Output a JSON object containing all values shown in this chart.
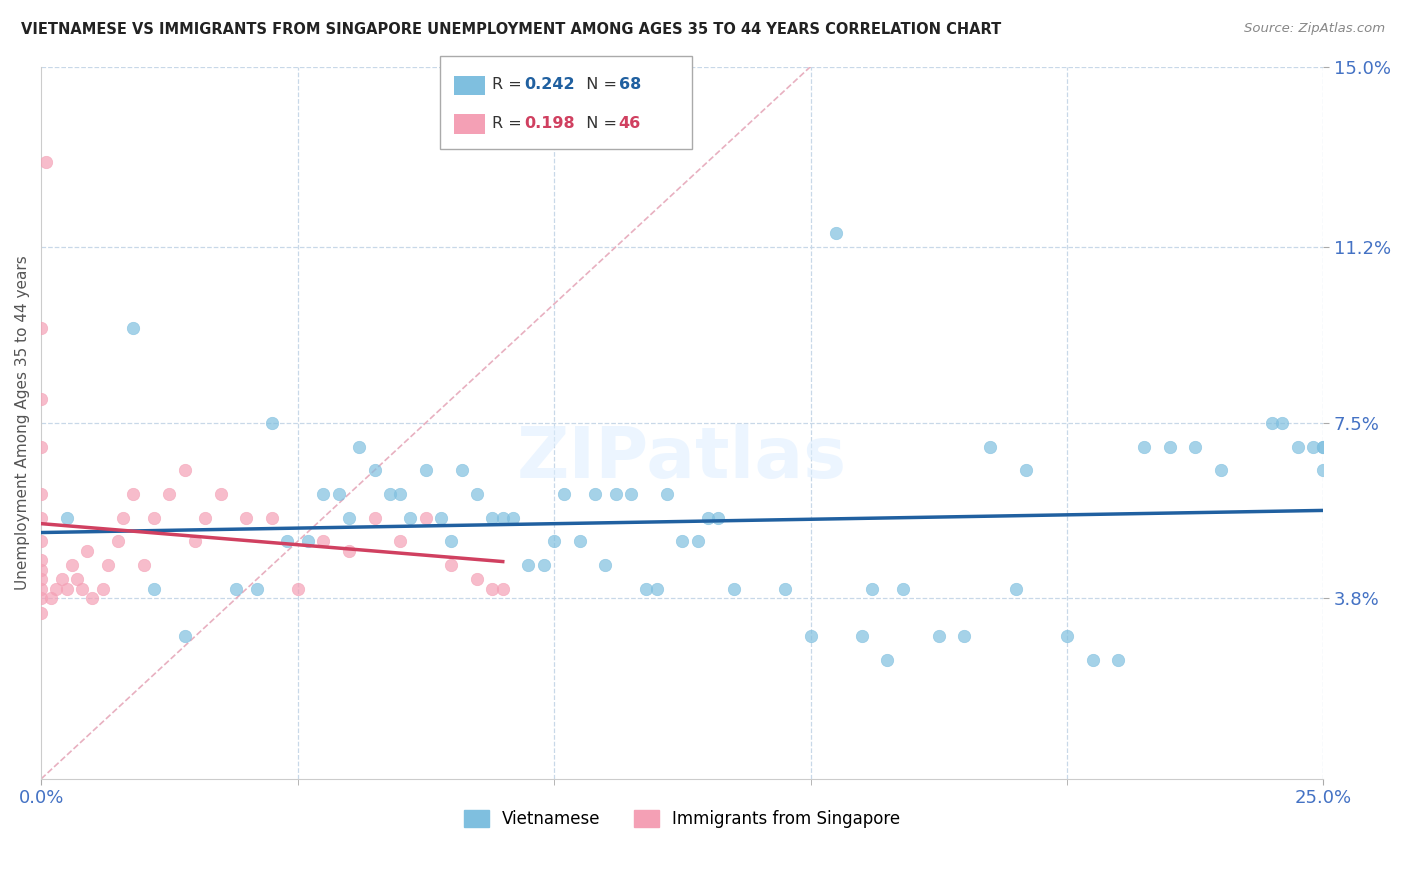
{
  "title": "VIETNAMESE VS IMMIGRANTS FROM SINGAPORE UNEMPLOYMENT AMONG AGES 35 TO 44 YEARS CORRELATION CHART",
  "source": "Source: ZipAtlas.com",
  "ylabel": "Unemployment Among Ages 35 to 44 years",
  "xlim": [
    0.0,
    0.25
  ],
  "ylim": [
    0.0,
    0.15
  ],
  "ytick_labels": [
    "3.8%",
    "7.5%",
    "11.2%",
    "15.0%"
  ],
  "ytick_vals": [
    0.038,
    0.075,
    0.112,
    0.15
  ],
  "blue_color": "#7fbfdf",
  "pink_color": "#f4a0b5",
  "blue_line_color": "#2060a0",
  "pink_line_color": "#d04060",
  "diag_line_color": "#e8b0c0",
  "legend_R1": "0.242",
  "legend_N1": "68",
  "legend_R2": "0.198",
  "legend_N2": "46",
  "watermark": "ZIPatlas",
  "blue_scatter_x": [
    0.005,
    0.018,
    0.022,
    0.028,
    0.038,
    0.042,
    0.045,
    0.048,
    0.052,
    0.055,
    0.058,
    0.06,
    0.062,
    0.065,
    0.068,
    0.07,
    0.072,
    0.075,
    0.078,
    0.08,
    0.082,
    0.085,
    0.088,
    0.09,
    0.092,
    0.095,
    0.098,
    0.1,
    0.102,
    0.105,
    0.108,
    0.11,
    0.112,
    0.115,
    0.118,
    0.12,
    0.122,
    0.125,
    0.128,
    0.13,
    0.132,
    0.135,
    0.145,
    0.15,
    0.16,
    0.165,
    0.175,
    0.18,
    0.19,
    0.2,
    0.205,
    0.21,
    0.155,
    0.162,
    0.168,
    0.185,
    0.192,
    0.215,
    0.22,
    0.225,
    0.23,
    0.24,
    0.242,
    0.245,
    0.248,
    0.25,
    0.25,
    0.25
  ],
  "blue_scatter_y": [
    0.055,
    0.095,
    0.04,
    0.03,
    0.04,
    0.04,
    0.075,
    0.05,
    0.05,
    0.06,
    0.06,
    0.055,
    0.07,
    0.065,
    0.06,
    0.06,
    0.055,
    0.065,
    0.055,
    0.05,
    0.065,
    0.06,
    0.055,
    0.055,
    0.055,
    0.045,
    0.045,
    0.05,
    0.06,
    0.05,
    0.06,
    0.045,
    0.06,
    0.06,
    0.04,
    0.04,
    0.06,
    0.05,
    0.05,
    0.055,
    0.055,
    0.04,
    0.04,
    0.03,
    0.03,
    0.025,
    0.03,
    0.03,
    0.04,
    0.03,
    0.025,
    0.025,
    0.115,
    0.04,
    0.04,
    0.07,
    0.065,
    0.07,
    0.07,
    0.07,
    0.065,
    0.075,
    0.075,
    0.07,
    0.07,
    0.07,
    0.07,
    0.065
  ],
  "pink_scatter_x": [
    0.0,
    0.0,
    0.0,
    0.0,
    0.0,
    0.0,
    0.0,
    0.0,
    0.0,
    0.0,
    0.002,
    0.003,
    0.004,
    0.005,
    0.006,
    0.007,
    0.008,
    0.009,
    0.01,
    0.012,
    0.013,
    0.015,
    0.016,
    0.018,
    0.02,
    0.022,
    0.025,
    0.028,
    0.03,
    0.032,
    0.035,
    0.04,
    0.045,
    0.05,
    0.055,
    0.06,
    0.065,
    0.07,
    0.075,
    0.08,
    0.085,
    0.088,
    0.09,
    0.0,
    0.0,
    0.001
  ],
  "pink_scatter_y": [
    0.035,
    0.038,
    0.04,
    0.042,
    0.044,
    0.046,
    0.05,
    0.055,
    0.06,
    0.07,
    0.038,
    0.04,
    0.042,
    0.04,
    0.045,
    0.042,
    0.04,
    0.048,
    0.038,
    0.04,
    0.045,
    0.05,
    0.055,
    0.06,
    0.045,
    0.055,
    0.06,
    0.065,
    0.05,
    0.055,
    0.06,
    0.055,
    0.055,
    0.04,
    0.05,
    0.048,
    0.055,
    0.05,
    0.055,
    0.045,
    0.042,
    0.04,
    0.04,
    0.08,
    0.095,
    0.13
  ]
}
